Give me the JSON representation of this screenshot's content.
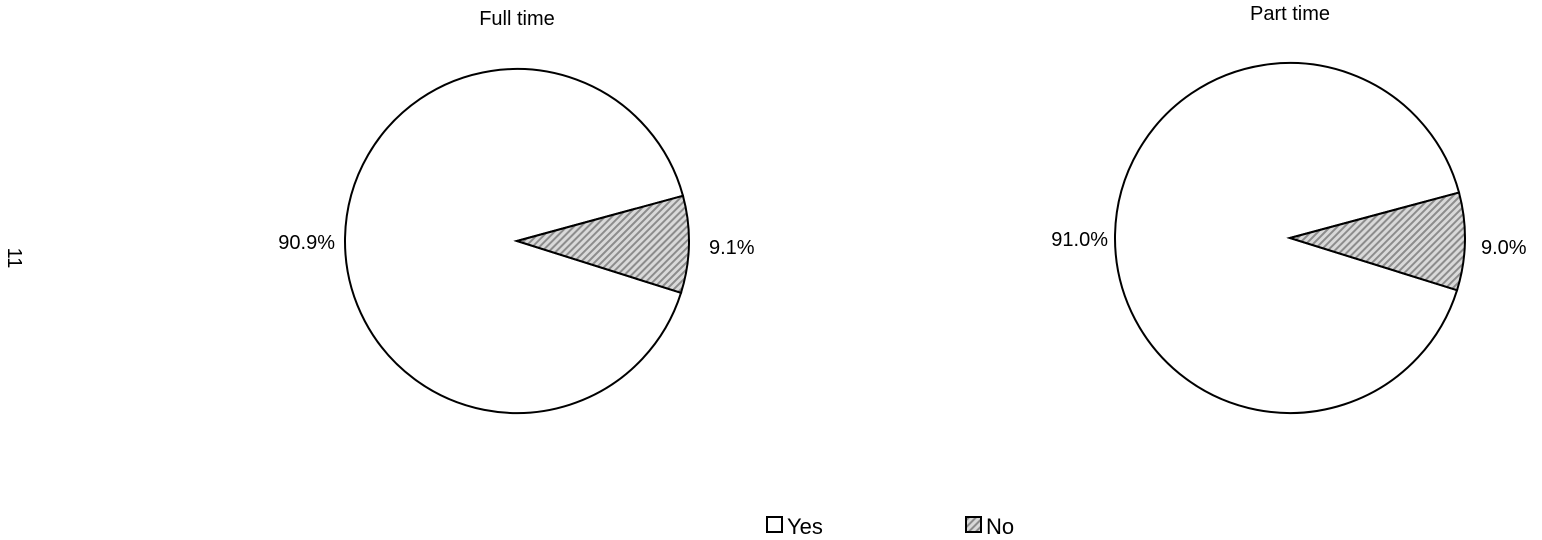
{
  "page_number": "11",
  "chart_data": [
    {
      "type": "pie",
      "title": "Full time",
      "categories": [
        "Yes",
        "No"
      ],
      "values": [
        90.9,
        9.1
      ],
      "labels": [
        "90.9%",
        "9.1%"
      ]
    },
    {
      "type": "pie",
      "title": "Part time",
      "categories": [
        "Yes",
        "No"
      ],
      "values": [
        91.0,
        9.0
      ],
      "labels": [
        "91.0%",
        "9.0%"
      ]
    }
  ],
  "legend": {
    "placement": "bottom",
    "items": [
      {
        "label": "Yes",
        "fill": "white"
      },
      {
        "label": "No",
        "fill": "hatched-gray"
      }
    ]
  },
  "colors": {
    "yes": "#ffffff",
    "no_base": "#d9d9d9",
    "no_stripe": "#8c8c8c",
    "outline": "#000000"
  }
}
